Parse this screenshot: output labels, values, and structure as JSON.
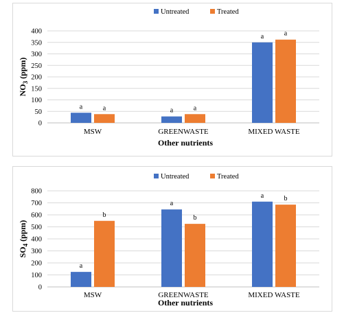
{
  "colors": {
    "untreated": "#4472c4",
    "treated": "#ed7d31",
    "grid": "#d9d9d9",
    "axis": "#bfbfbf"
  },
  "chart_data": [
    {
      "type": "bar",
      "legend_position": "top",
      "grid": true,
      "categories": [
        "MSW",
        "GREENWASTE",
        "MIXED WASTE"
      ],
      "series": [
        {
          "name": "Untreated",
          "values": [
            44,
            28,
            350
          ],
          "labels": [
            "a",
            "a",
            "a"
          ]
        },
        {
          "name": "Treated",
          "values": [
            38,
            38,
            362
          ],
          "labels": [
            "a",
            "a",
            "a"
          ]
        }
      ],
      "xlabel": "Other nutrients",
      "ylabel_main": "NO",
      "ylabel_sub": "3",
      "ylabel_rest": " (ppm)",
      "ylim": [
        0,
        400
      ],
      "yticks": [
        0,
        50,
        100,
        150,
        200,
        250,
        300,
        350,
        400
      ]
    },
    {
      "type": "bar",
      "legend_position": "top",
      "grid": true,
      "categories": [
        "MSW",
        "GREENWASTE",
        "MIXED WASTE"
      ],
      "series": [
        {
          "name": "Untreated",
          "values": [
            125,
            645,
            710
          ],
          "labels": [
            "a",
            "a",
            "a"
          ]
        },
        {
          "name": "Treated",
          "values": [
            550,
            525,
            685
          ],
          "labels": [
            "b",
            "b",
            "b"
          ]
        }
      ],
      "xlabel": "Other nutrients",
      "ylabel_main": "SO",
      "ylabel_sub": "4",
      "ylabel_rest": " (ppm)",
      "ylim": [
        0,
        800
      ],
      "yticks": [
        0,
        100,
        200,
        300,
        400,
        500,
        600,
        700,
        800
      ]
    }
  ]
}
